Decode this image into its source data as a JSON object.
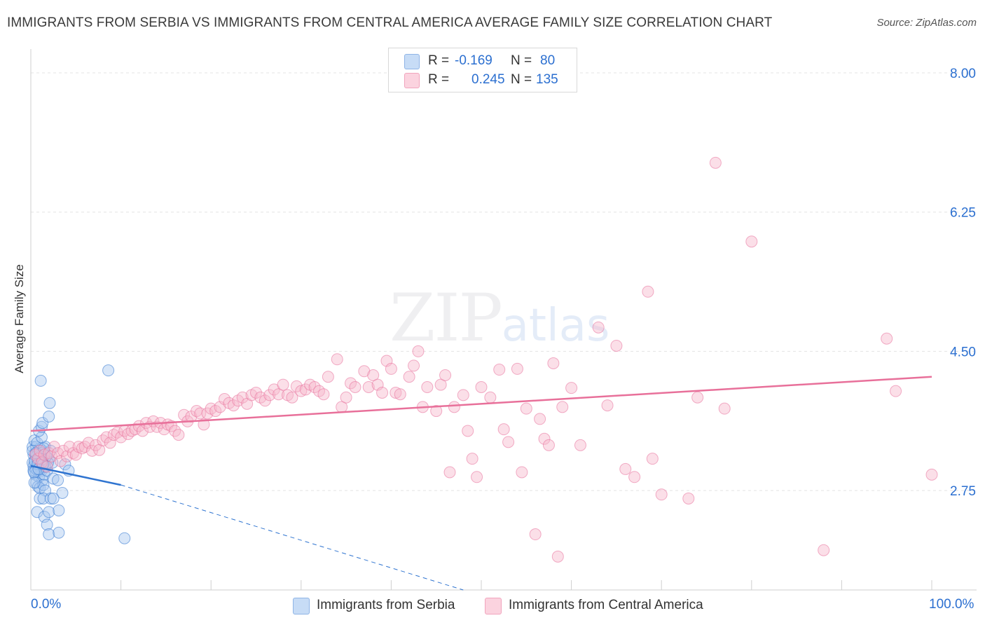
{
  "header": {
    "title": "IMMIGRANTS FROM SERBIA VS IMMIGRANTS FROM CENTRAL AMERICA AVERAGE FAMILY SIZE CORRELATION CHART",
    "source": "Source: ZipAtlas.com"
  },
  "watermark": {
    "zip": "ZIP",
    "atlas": "atlas"
  },
  "legend": {
    "rows": [
      {
        "r_label": "R =",
        "r_value": "-0.169",
        "n_label": "N =",
        "n_value": "80",
        "color": "#a9c7ef"
      },
      {
        "r_label": "R =",
        "r_value": "0.245",
        "n_label": "N =",
        "n_value": "135",
        "color": "#f6b9cc"
      }
    ]
  },
  "chart_data": {
    "type": "scatter",
    "title": "IMMIGRANTS FROM SERBIA VS IMMIGRANTS FROM CENTRAL AMERICA AVERAGE FAMILY SIZE CORRELATION CHART",
    "xlabel": "",
    "ylabel": "Average Family Size",
    "xlim": [
      0,
      100
    ],
    "ylim": [
      1.5,
      8.3
    ],
    "x_tick_labels": [
      "0.0%",
      "100.0%"
    ],
    "y_ticks": [
      2.75,
      4.5,
      6.25,
      8.0
    ],
    "y_tick_labels": [
      "2.75",
      "4.50",
      "6.25",
      "8.00"
    ],
    "grid": true,
    "legend_position": "bottom",
    "series": [
      {
        "name": "Immigrants from Serbia",
        "color": "#2f74d0",
        "fill": "#a9c7ef",
        "trend": {
          "x": [
            0,
            10
          ],
          "y": [
            3.06,
            2.82
          ],
          "dashed_to": [
            48,
            1.5
          ]
        },
        "points": [
          [
            0.2,
            3.3
          ],
          [
            0.3,
            3.2
          ],
          [
            0.4,
            3.1
          ],
          [
            0.5,
            3.2
          ],
          [
            0.5,
            3.0
          ],
          [
            0.6,
            3.3
          ],
          [
            0.7,
            3.15
          ],
          [
            0.8,
            3.25
          ],
          [
            0.9,
            3.05
          ],
          [
            1.0,
            3.2
          ],
          [
            1.1,
            3.1
          ],
          [
            1.2,
            3.0
          ],
          [
            1.3,
            3.25
          ],
          [
            1.4,
            3.2
          ],
          [
            1.5,
            3.1
          ],
          [
            1.6,
            3.3
          ],
          [
            0.3,
            3.05
          ],
          [
            0.6,
            3.18
          ],
          [
            0.8,
            3.12
          ],
          [
            1.0,
            3.28
          ],
          [
            1.2,
            3.22
          ],
          [
            0.4,
            3.38
          ],
          [
            0.7,
            3.35
          ],
          [
            1.1,
            3.02
          ],
          [
            0.5,
            2.95
          ],
          [
            0.9,
            2.92
          ],
          [
            1.3,
            2.88
          ],
          [
            1.5,
            2.95
          ],
          [
            1.8,
            3.0
          ],
          [
            2.0,
            3.15
          ],
          [
            2.2,
            3.25
          ],
          [
            0.6,
            2.85
          ],
          [
            0.8,
            2.8
          ],
          [
            1.0,
            2.78
          ],
          [
            1.4,
            2.82
          ],
          [
            1.6,
            2.75
          ],
          [
            2.4,
            3.1
          ],
          [
            1.2,
            3.42
          ],
          [
            0.4,
            2.85
          ],
          [
            0.9,
            3.5
          ],
          [
            1.2,
            3.55
          ],
          [
            1.3,
            3.6
          ],
          [
            2.0,
            3.68
          ],
          [
            2.1,
            3.85
          ],
          [
            1.1,
            4.13
          ],
          [
            2.5,
            2.9
          ],
          [
            3.0,
            2.88
          ],
          [
            3.5,
            2.72
          ],
          [
            1.0,
            2.65
          ],
          [
            1.4,
            2.65
          ],
          [
            2.2,
            2.65
          ],
          [
            2.5,
            2.65
          ],
          [
            0.7,
            2.48
          ],
          [
            1.5,
            2.42
          ],
          [
            2.0,
            2.48
          ],
          [
            3.1,
            2.5
          ],
          [
            1.8,
            2.32
          ],
          [
            2.0,
            2.2
          ],
          [
            3.1,
            2.22
          ],
          [
            8.6,
            4.26
          ],
          [
            10.4,
            2.15
          ],
          [
            3.8,
            3.08
          ],
          [
            4.2,
            3.0
          ],
          [
            0.2,
            3.1
          ],
          [
            0.3,
            3.0
          ],
          [
            0.6,
            3.02
          ],
          [
            1.6,
            3.05
          ],
          [
            1.9,
            3.1
          ],
          [
            0.9,
            3.15
          ],
          [
            1.7,
            3.18
          ],
          [
            0.2,
            3.25
          ],
          [
            1.1,
            3.18
          ],
          [
            0.45,
            3.12
          ],
          [
            0.75,
            3.08
          ],
          [
            1.25,
            3.14
          ],
          [
            0.55,
            3.22
          ],
          [
            1.45,
            3.28
          ],
          [
            0.35,
            2.98
          ],
          [
            0.85,
            3.02
          ],
          [
            1.35,
            3.08
          ]
        ]
      },
      {
        "name": "Immigrants from Central America",
        "color": "#e8709a",
        "fill": "#f6b9cc",
        "trend": {
          "x": [
            0,
            100
          ],
          "y": [
            3.5,
            4.18
          ]
        },
        "points": [
          [
            0.5,
            3.2
          ],
          [
            0.8,
            3.15
          ],
          [
            1.0,
            3.25
          ],
          [
            1.2,
            3.1
          ],
          [
            1.5,
            3.2
          ],
          [
            1.8,
            3.05
          ],
          [
            2.0,
            3.22
          ],
          [
            2.3,
            3.18
          ],
          [
            2.6,
            3.3
          ],
          [
            3.0,
            3.22
          ],
          [
            3.3,
            3.12
          ],
          [
            3.6,
            3.25
          ],
          [
            4.0,
            3.18
          ],
          [
            4.3,
            3.3
          ],
          [
            4.7,
            3.22
          ],
          [
            5.0,
            3.2
          ],
          [
            5.3,
            3.3
          ],
          [
            5.7,
            3.28
          ],
          [
            6.0,
            3.3
          ],
          [
            6.4,
            3.35
          ],
          [
            6.8,
            3.25
          ],
          [
            7.2,
            3.32
          ],
          [
            7.6,
            3.26
          ],
          [
            8.0,
            3.38
          ],
          [
            8.4,
            3.42
          ],
          [
            8.8,
            3.35
          ],
          [
            9.2,
            3.45
          ],
          [
            9.6,
            3.48
          ],
          [
            10.0,
            3.42
          ],
          [
            10.4,
            3.5
          ],
          [
            10.8,
            3.46
          ],
          [
            11.2,
            3.5
          ],
          [
            11.6,
            3.52
          ],
          [
            12.0,
            3.56
          ],
          [
            12.4,
            3.5
          ],
          [
            12.8,
            3.6
          ],
          [
            13.2,
            3.55
          ],
          [
            13.6,
            3.62
          ],
          [
            14.0,
            3.55
          ],
          [
            14.4,
            3.6
          ],
          [
            14.8,
            3.52
          ],
          [
            15.2,
            3.58
          ],
          [
            15.6,
            3.56
          ],
          [
            16.0,
            3.5
          ],
          [
            16.4,
            3.45
          ],
          [
            17.0,
            3.7
          ],
          [
            17.4,
            3.62
          ],
          [
            17.8,
            3.68
          ],
          [
            18.4,
            3.75
          ],
          [
            18.8,
            3.72
          ],
          [
            19.2,
            3.58
          ],
          [
            19.6,
            3.72
          ],
          [
            20.0,
            3.78
          ],
          [
            20.5,
            3.75
          ],
          [
            21.0,
            3.8
          ],
          [
            21.5,
            3.9
          ],
          [
            22.0,
            3.85
          ],
          [
            22.5,
            3.82
          ],
          [
            23.0,
            3.88
          ],
          [
            23.5,
            3.92
          ],
          [
            24.0,
            3.84
          ],
          [
            24.5,
            3.95
          ],
          [
            25.0,
            3.98
          ],
          [
            25.5,
            3.92
          ],
          [
            26.0,
            3.88
          ],
          [
            26.5,
            3.95
          ],
          [
            27.0,
            4.02
          ],
          [
            27.5,
            3.96
          ],
          [
            28.0,
            4.08
          ],
          [
            28.5,
            3.95
          ],
          [
            29.0,
            3.92
          ],
          [
            29.5,
            4.06
          ],
          [
            30.0,
            4.0
          ],
          [
            30.5,
            4.02
          ],
          [
            31.0,
            4.08
          ],
          [
            31.5,
            4.05
          ],
          [
            32.0,
            4.0
          ],
          [
            32.5,
            3.96
          ],
          [
            33.0,
            4.18
          ],
          [
            34.0,
            4.4
          ],
          [
            34.5,
            3.8
          ],
          [
            35.0,
            3.92
          ],
          [
            35.5,
            4.1
          ],
          [
            36.0,
            4.05
          ],
          [
            37.0,
            4.25
          ],
          [
            37.5,
            4.05
          ],
          [
            38.0,
            4.2
          ],
          [
            38.5,
            4.08
          ],
          [
            39.0,
            3.98
          ],
          [
            39.5,
            4.38
          ],
          [
            40.0,
            4.28
          ],
          [
            40.5,
            3.98
          ],
          [
            41.0,
            3.96
          ],
          [
            42.0,
            4.18
          ],
          [
            42.5,
            4.32
          ],
          [
            43.0,
            4.5
          ],
          [
            43.5,
            3.8
          ],
          [
            44.0,
            4.05
          ],
          [
            45.0,
            3.75
          ],
          [
            45.5,
            4.08
          ],
          [
            46.0,
            4.2
          ],
          [
            46.5,
            2.98
          ],
          [
            47.0,
            3.8
          ],
          [
            48.0,
            3.95
          ],
          [
            48.5,
            3.5
          ],
          [
            49.0,
            3.15
          ],
          [
            49.5,
            2.92
          ],
          [
            50.0,
            4.05
          ],
          [
            51.0,
            3.92
          ],
          [
            52.0,
            4.27
          ],
          [
            52.5,
            3.52
          ],
          [
            53.0,
            3.36
          ],
          [
            54.0,
            4.28
          ],
          [
            54.5,
            2.98
          ],
          [
            55.0,
            3.78
          ],
          [
            56.0,
            2.2
          ],
          [
            56.5,
            3.65
          ],
          [
            57.0,
            3.4
          ],
          [
            57.5,
            3.32
          ],
          [
            58.0,
            4.35
          ],
          [
            59.0,
            3.8
          ],
          [
            60.0,
            4.04
          ],
          [
            61.0,
            3.32
          ],
          [
            63.0,
            4.8
          ],
          [
            64.0,
            3.82
          ],
          [
            65.0,
            4.57
          ],
          [
            66.0,
            3.02
          ],
          [
            67.0,
            2.92
          ],
          [
            68.5,
            5.25
          ],
          [
            69.0,
            3.15
          ],
          [
            70.0,
            2.7
          ],
          [
            73.0,
            2.65
          ],
          [
            74.0,
            3.92
          ],
          [
            76.0,
            6.87
          ],
          [
            77.0,
            3.78
          ],
          [
            80.0,
            5.88
          ],
          [
            88.0,
            2.0
          ],
          [
            96.0,
            4.0
          ],
          [
            100.0,
            2.95
          ],
          [
            95.0,
            4.66
          ],
          [
            58.5,
            1.92
          ]
        ]
      }
    ]
  }
}
